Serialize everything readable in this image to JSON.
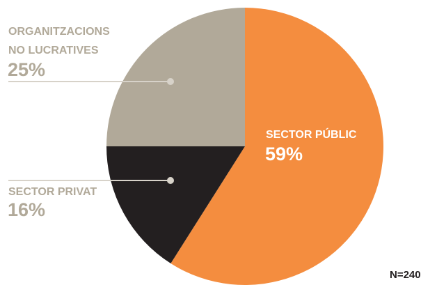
{
  "chart_data": {
    "type": "pie",
    "title": "",
    "start_angle_deg": 0,
    "direction": "clockwise",
    "slices": [
      {
        "label_lines": [
          "SECTOR PÚBLIC"
        ],
        "value": 59,
        "value_label": "59%",
        "color": "#f48d3f",
        "label_color": "#ffffff",
        "label_placement": "inside"
      },
      {
        "label_lines": [
          "SECTOR PRIVAT"
        ],
        "value": 16,
        "value_label": "16%",
        "color": "#231f20",
        "label_color": "#b1a999",
        "label_placement": "outside-left"
      },
      {
        "label_lines": [
          "ORGANITZACIONS",
          "NO LUCRATIVES"
        ],
        "value": 25,
        "value_label": "25%",
        "color": "#b1a999",
        "label_color": "#b1a999",
        "label_placement": "outside-left"
      }
    ],
    "sample_size_label": "N=240",
    "leader_line_color": "#d7d2c9"
  }
}
